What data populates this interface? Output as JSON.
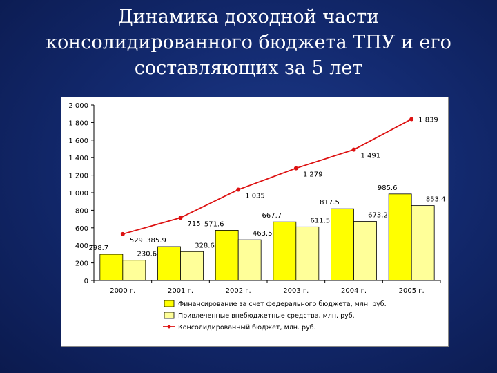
{
  "title_lines": [
    "Динамика доходной части",
    "консолидированного бюджета ТПУ и его",
    "составляющих за 5 лет"
  ],
  "colors": {
    "background": "#132a70",
    "series_federal": "#ffff00",
    "series_extra": "#ffff99",
    "series_line": "#dd1111"
  },
  "chart_data": {
    "type": "bar",
    "categories": [
      "2000 г.",
      "2001 г.",
      "2002 г.",
      "2003 г.",
      "2004 г.",
      "2005 г."
    ],
    "ylim": [
      0,
      2000
    ],
    "yticks": [
      0,
      200,
      400,
      600,
      800,
      1000,
      1200,
      1400,
      1600,
      1800,
      2000
    ],
    "ytick_labels": [
      "0",
      "200",
      "400",
      "600",
      "800",
      "1 000",
      "1 200",
      "1 400",
      "1 600",
      "1 800",
      "2 000"
    ],
    "grid": false,
    "legend_position": "bottom",
    "series": [
      {
        "name": "Финансирование за счет федерального бюджета, млн. руб.",
        "kind": "bar",
        "values": [
          298.7,
          385.9,
          571.6,
          667.7,
          817.5,
          985.6
        ],
        "labels": [
          "298.7",
          "385.9",
          "571.6",
          "667.7",
          "817.5",
          "985.6"
        ]
      },
      {
        "name": "Привлеченные внебюджетные средства, млн. руб.",
        "kind": "bar",
        "values": [
          230.6,
          328.6,
          463.5,
          611.5,
          673.2,
          853.4
        ],
        "labels": [
          "230.6",
          "328.6",
          "463.5",
          "611.5",
          "673.2",
          "853.4"
        ]
      },
      {
        "name": "Консолидированный бюджет, млн. руб.",
        "kind": "line",
        "values": [
          529,
          715,
          1035,
          1279,
          1491,
          1839
        ],
        "labels": [
          "529",
          "715",
          "1 035",
          "1 279",
          "1 491",
          "1 839"
        ]
      }
    ]
  }
}
